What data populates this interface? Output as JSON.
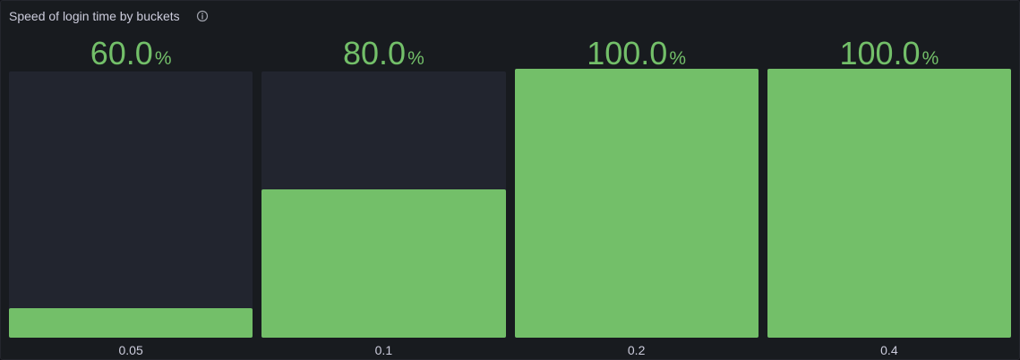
{
  "panel": {
    "title": "Speed of login time by buckets",
    "info_icon": "info-circle-icon"
  },
  "chart_data": {
    "type": "bar",
    "title": "Speed of login time by buckets",
    "unit": "%",
    "ylim": [
      0,
      100
    ],
    "categories": [
      "0.05",
      "0.1",
      "0.2",
      "0.4"
    ],
    "values": [
      60.0,
      80.0,
      100.0,
      100.0
    ],
    "value_labels": [
      "60.0",
      "80.0",
      "100.0",
      "100.0"
    ],
    "grid": false,
    "colors": {
      "fill": "#73bf69",
      "track": "#22252f",
      "value_text": "#73bf69",
      "label_text": "#ccccdc",
      "background": "#181b1f"
    }
  }
}
